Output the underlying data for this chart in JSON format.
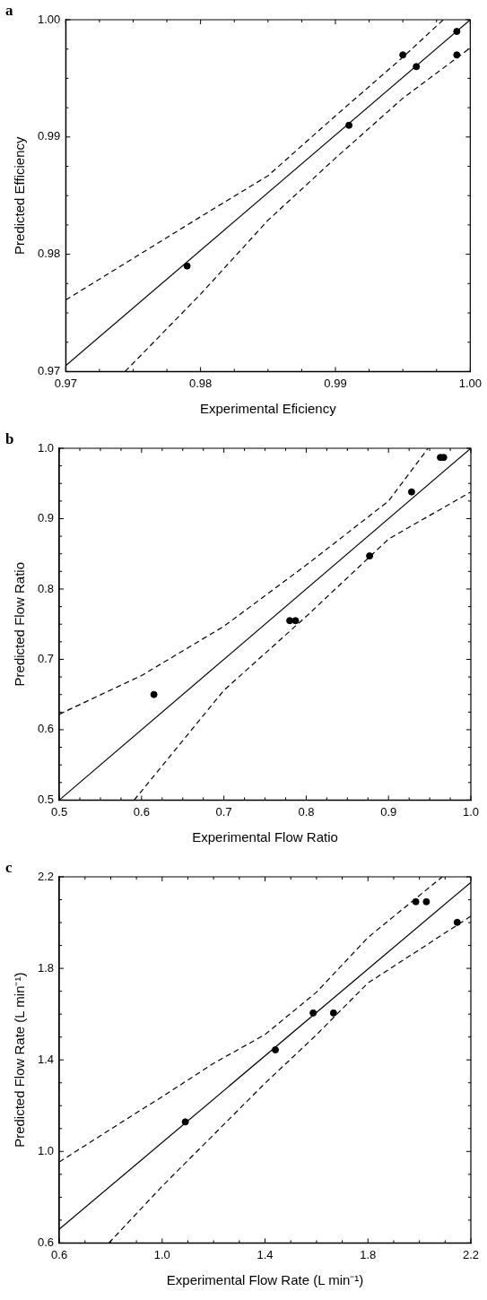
{
  "chart_data": [
    {
      "type": "scatter",
      "title": "a",
      "xlabel": "Experimental Eficiency",
      "ylabel": "Predicted Efficiency",
      "xlim": [
        0.97,
        1.0
      ],
      "ylim": [
        0.97,
        1.0
      ],
      "xticks": [
        0.97,
        {
          "value": 0.9725,
          "label": null
        },
        {
          "value": 0.975,
          "label": null
        },
        {
          "value": 0.9775,
          "label": null
        },
        0.98,
        {
          "value": 0.9825,
          "label": null
        },
        {
          "value": 0.985,
          "label": null
        },
        {
          "value": 0.9875,
          "label": null
        },
        0.99,
        {
          "value": 0.9925,
          "label": null
        },
        {
          "value": 0.995,
          "label": null
        },
        {
          "value": 0.9975,
          "label": null
        },
        {
          "value": 1.0,
          "label": "1.00"
        }
      ],
      "yticks": [
        0.97,
        {
          "value": 0.9725,
          "label": null
        },
        {
          "value": 0.975,
          "label": null
        },
        {
          "value": 0.9775,
          "label": null
        },
        0.98,
        {
          "value": 0.9825,
          "label": null
        },
        {
          "value": 0.985,
          "label": null
        },
        {
          "value": 0.9875,
          "label": null
        },
        0.99,
        {
          "value": 0.9925,
          "label": null
        },
        {
          "value": 0.995,
          "label": null
        },
        {
          "value": 0.9975,
          "label": null
        },
        {
          "value": 1.0,
          "label": "1.00"
        }
      ],
      "grid": false,
      "legend": false,
      "series": [
        {
          "type": "scatter",
          "marker": "circle",
          "color": "#000000",
          "x": [
            0.979,
            0.991,
            0.995,
            0.996,
            0.999,
            0.999
          ],
          "values": [
            0.979,
            0.991,
            0.997,
            0.996,
            0.999,
            0.997
          ]
        },
        {
          "type": "line",
          "color": "#000000",
          "line_style": "solid",
          "x": [
            0.97,
            1.0
          ],
          "values": [
            0.9705,
            1.0
          ]
        },
        {
          "type": "line",
          "color": "#000000",
          "line_style": "dashed",
          "x": [
            0.97,
            0.98,
            0.985,
            0.99,
            0.995,
            0.998
          ],
          "values": [
            0.9761,
            0.9832,
            0.9867,
            0.9918,
            0.9968,
            1.0
          ]
        },
        {
          "type": "line",
          "color": "#000000",
          "line_style": "dashed",
          "x": [
            0.9744,
            0.98,
            0.985,
            0.99,
            0.995,
            1.0
          ],
          "values": [
            0.97,
            0.9766,
            0.9829,
            0.9882,
            0.9933,
            0.9976
          ]
        }
      ]
    },
    {
      "type": "scatter",
      "title": "b",
      "xlabel": "Experimental Flow Ratio",
      "ylabel": "Predicted Flow Ratio",
      "xlim": [
        0.5,
        1.0
      ],
      "ylim": [
        0.5,
        1.0
      ],
      "xticks": [
        0.5,
        {
          "value": 0.525,
          "label": null
        },
        {
          "value": 0.55,
          "label": null
        },
        {
          "value": 0.575,
          "label": null
        },
        0.6,
        {
          "value": 0.625,
          "label": null
        },
        {
          "value": 0.65,
          "label": null
        },
        {
          "value": 0.675,
          "label": null
        },
        0.7,
        {
          "value": 0.725,
          "label": null
        },
        {
          "value": 0.75,
          "label": null
        },
        {
          "value": 0.775,
          "label": null
        },
        0.8,
        {
          "value": 0.825,
          "label": null
        },
        {
          "value": 0.85,
          "label": null
        },
        {
          "value": 0.875,
          "label": null
        },
        0.9,
        {
          "value": 0.925,
          "label": null
        },
        {
          "value": 0.95,
          "label": null
        },
        {
          "value": 0.975,
          "label": null
        },
        {
          "value": 1.0,
          "label": "1.0"
        }
      ],
      "yticks": [
        0.5,
        {
          "value": 0.525,
          "label": null
        },
        {
          "value": 0.55,
          "label": null
        },
        {
          "value": 0.575,
          "label": null
        },
        0.6,
        {
          "value": 0.625,
          "label": null
        },
        {
          "value": 0.65,
          "label": null
        },
        {
          "value": 0.675,
          "label": null
        },
        0.7,
        {
          "value": 0.725,
          "label": null
        },
        {
          "value": 0.75,
          "label": null
        },
        {
          "value": 0.775,
          "label": null
        },
        0.8,
        {
          "value": 0.825,
          "label": null
        },
        {
          "value": 0.85,
          "label": null
        },
        {
          "value": 0.875,
          "label": null
        },
        0.9,
        {
          "value": 0.925,
          "label": null
        },
        {
          "value": 0.95,
          "label": null
        },
        {
          "value": 0.975,
          "label": null
        },
        {
          "value": 1.0,
          "label": "1.0"
        }
      ],
      "grid": false,
      "legend": false,
      "series": [
        {
          "type": "scatter",
          "marker": "circle",
          "color": "#000000",
          "x": [
            0.615,
            0.78,
            0.787,
            0.877,
            0.928,
            0.963,
            0.967
          ],
          "values": [
            0.65,
            0.755,
            0.755,
            0.847,
            0.938,
            0.987,
            0.987
          ]
        },
        {
          "type": "line",
          "color": "#000000",
          "line_style": "solid",
          "x": [
            0.5,
            1.0
          ],
          "values": [
            0.5,
            1.0
          ]
        },
        {
          "type": "line",
          "color": "#000000",
          "line_style": "dashed",
          "x": [
            0.5,
            0.6,
            0.7,
            0.8,
            0.9,
            0.948
          ],
          "values": [
            0.622,
            0.677,
            0.747,
            0.834,
            0.925,
            1.0
          ]
        },
        {
          "type": "line",
          "color": "#000000",
          "line_style": "dashed",
          "x": [
            0.591,
            0.7,
            0.8,
            0.9,
            1.0
          ],
          "values": [
            0.5,
            0.656,
            0.761,
            0.871,
            0.938
          ]
        }
      ]
    },
    {
      "type": "scatter",
      "title": "c",
      "xlabel": "Experimental Flow Rate (L min⁻¹)",
      "ylabel": "Predicted Flow Rate (L min⁻¹)",
      "xlim": [
        0.6,
        2.2
      ],
      "ylim": [
        0.6,
        2.2
      ],
      "xticks": [
        0.6,
        {
          "value": 0.7,
          "label": null
        },
        {
          "value": 0.8,
          "label": null
        },
        {
          "value": 0.9,
          "label": null
        },
        {
          "value": 1.0,
          "label": "1.0"
        },
        {
          "value": 1.1,
          "label": null
        },
        {
          "value": 1.2,
          "label": null
        },
        {
          "value": 1.3,
          "label": null
        },
        1.4,
        {
          "value": 1.5,
          "label": null
        },
        {
          "value": 1.6,
          "label": null
        },
        {
          "value": 1.7,
          "label": null
        },
        1.8,
        {
          "value": 1.9,
          "label": null
        },
        {
          "value": 2.0,
          "label": null
        },
        {
          "value": 2.1,
          "label": null
        },
        2.2
      ],
      "yticks": [
        0.6,
        {
          "value": 0.7,
          "label": null
        },
        {
          "value": 0.8,
          "label": null
        },
        {
          "value": 0.9,
          "label": null
        },
        {
          "value": 1.0,
          "label": "1.0"
        },
        {
          "value": 1.1,
          "label": null
        },
        {
          "value": 1.2,
          "label": null
        },
        {
          "value": 1.3,
          "label": null
        },
        1.4,
        {
          "value": 1.5,
          "label": null
        },
        {
          "value": 1.6,
          "label": null
        },
        {
          "value": 1.7,
          "label": null
        },
        1.8,
        {
          "value": 1.9,
          "label": null
        },
        {
          "value": 2.0,
          "label": null
        },
        {
          "value": 2.1,
          "label": null
        },
        2.2
      ],
      "grid": false,
      "legend": false,
      "series": [
        {
          "type": "scatter",
          "marker": "circle",
          "color": "#000000",
          "x": [
            1.09,
            1.44,
            1.587,
            1.666,
            1.986,
            2.027,
            2.147
          ],
          "values": [
            1.129,
            1.444,
            1.605,
            1.605,
            2.091,
            2.091,
            2.001
          ]
        },
        {
          "type": "line",
          "color": "#000000",
          "line_style": "solid",
          "x": [
            0.6,
            2.2
          ],
          "values": [
            0.66,
            2.176
          ]
        },
        {
          "type": "line",
          "color": "#000000",
          "line_style": "dashed",
          "x": [
            0.6,
            0.886,
            1.0,
            1.2,
            1.4,
            1.6,
            1.8,
            2.089
          ],
          "values": [
            0.954,
            1.159,
            1.239,
            1.385,
            1.511,
            1.696,
            1.935,
            2.2
          ]
        },
        {
          "type": "line",
          "color": "#000000",
          "line_style": "dashed",
          "x": [
            0.793,
            1.0,
            1.2,
            1.4,
            1.6,
            1.8,
            2.2
          ],
          "values": [
            0.6,
            0.848,
            1.073,
            1.298,
            1.51,
            1.736,
            2.028
          ]
        }
      ]
    }
  ]
}
